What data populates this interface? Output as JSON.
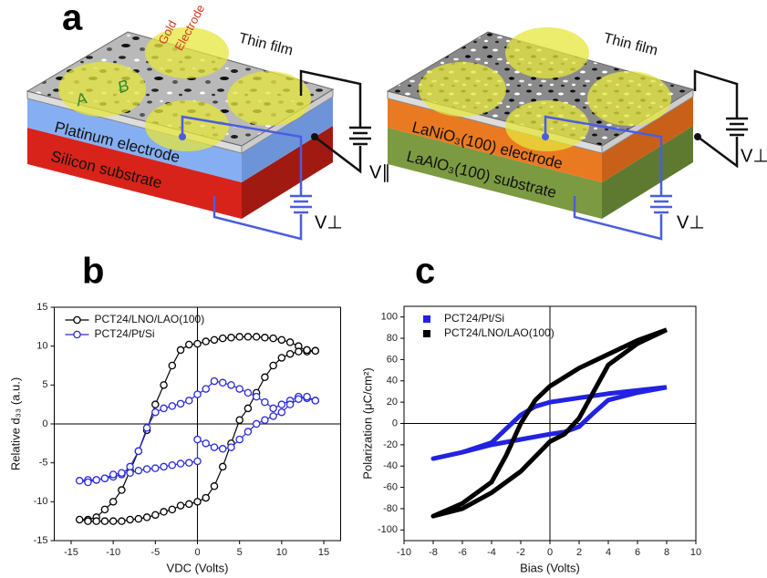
{
  "panel_labels": [
    "a",
    "b",
    "c"
  ],
  "diagram": {
    "left": {
      "film": "Thin film",
      "gold": [
        "Gold",
        "Electrode"
      ],
      "points": [
        "A",
        "B"
      ],
      "electrode": "Platinum electrode",
      "substrate": "Silicon substrate",
      "v_parallel": "V∥",
      "v_perp": "V⊥"
    },
    "right": {
      "film": "Thin film",
      "electrode": "LaNiO₃(100) electrode",
      "substrate": "LaAlO₃(100) substrate",
      "v_perp_top": "V⊥",
      "v_perp": "V⊥"
    }
  },
  "chart_data": [
    {
      "type": "line",
      "xlabel": "VDC (Volts)",
      "ylabel": "Relative d₃₃ (a.u.)",
      "xlim": [
        -17,
        17
      ],
      "xticks": [
        -15,
        -10,
        -5,
        0,
        5,
        10,
        15
      ],
      "ylim": [
        -15,
        15
      ],
      "yticks": [
        -15,
        -10,
        -5,
        0,
        5,
        10,
        15
      ],
      "zero_lines": true,
      "markers": true,
      "line_width": 1.2,
      "legend": "upper left",
      "series": [
        {
          "name": "PCT24/LNO/LAO(100)",
          "color": "#000000",
          "x": [
            14,
            13,
            12,
            11,
            10,
            9,
            8,
            7,
            6,
            5,
            4,
            3,
            2,
            1,
            0,
            -1,
            -2,
            -3,
            -4,
            -5,
            -6,
            -7,
            -8,
            -9,
            -10,
            -11,
            -12,
            -13,
            -14,
            -13,
            -12,
            -11,
            -10,
            -9,
            -8,
            -7,
            -6,
            -5,
            -4,
            -3,
            -2,
            -1,
            0,
            1,
            2,
            3,
            4,
            5,
            6,
            7,
            8,
            9,
            10,
            11,
            12,
            13,
            14
          ],
          "values": [
            9.4,
            9.3,
            10,
            10.5,
            10.8,
            11,
            11.1,
            11.2,
            11.2,
            11.2,
            11.1,
            11,
            10.8,
            10.6,
            10.3,
            10.2,
            9.5,
            7.5,
            5,
            2.5,
            -0.8,
            -3.5,
            -6,
            -8.5,
            -10,
            -11,
            -12,
            -12.3,
            -12.3,
            -12.5,
            -12.5,
            -12.5,
            -12.5,
            -12.5,
            -12.3,
            -12.2,
            -12,
            -11.7,
            -11.3,
            -11,
            -10.5,
            -10.3,
            -10,
            -9.5,
            -8,
            -5.5,
            -2.5,
            0.5,
            2,
            4,
            6,
            7.5,
            8.5,
            9,
            9.3,
            9.5,
            9.4
          ]
        },
        {
          "name": "PCT24/Pt/Si",
          "color": "#2a2ad8",
          "x": [
            14,
            13,
            12,
            11,
            10,
            9,
            8,
            7,
            6,
            5,
            4,
            3,
            2,
            1,
            0,
            -1,
            -2,
            -3,
            -4,
            -5,
            -6,
            -7,
            -8,
            -9,
            -10,
            -11,
            -12,
            -13,
            -14,
            -13,
            -12,
            -11,
            -10,
            -9,
            -8,
            -7,
            -6,
            -5,
            -4,
            -3,
            -2,
            -1,
            0,
            0,
            1,
            2,
            3,
            4,
            5,
            6,
            7,
            8,
            9,
            10,
            11,
            12,
            13,
            14
          ],
          "values": [
            3,
            3.3,
            3.5,
            3,
            2.5,
            2,
            2.8,
            3.5,
            4,
            4.5,
            5,
            5.3,
            5.5,
            4.5,
            3.8,
            3,
            2.6,
            2.3,
            2,
            1.5,
            -0.5,
            -3.5,
            -5.5,
            -6.5,
            -6.8,
            -7,
            -7.2,
            -7.2,
            -7.3,
            -7.5,
            -7.2,
            -7,
            -6.5,
            -6.3,
            -6.3,
            -6,
            -5.8,
            -5.7,
            -5.5,
            -5.3,
            -5.1,
            -5,
            -4.8,
            -2,
            -2.5,
            -3,
            -3.2,
            -3,
            -2,
            -1,
            0,
            0.5,
            1,
            1.5,
            2.5,
            3.2,
            3.5,
            3
          ]
        }
      ]
    },
    {
      "type": "line",
      "xlabel": "Bias (Volts)",
      "ylabel": "Polarization (μC/cm²)",
      "xlim": [
        -10,
        10
      ],
      "xticks": [
        -10,
        -8,
        -6,
        -4,
        -2,
        0,
        2,
        4,
        6,
        8,
        10
      ],
      "ylim": [
        -110,
        110
      ],
      "yticks": [
        -100,
        -80,
        -60,
        -40,
        -20,
        0,
        20,
        40,
        60,
        80,
        100
      ],
      "zero_lines": true,
      "markers": false,
      "line_width": 5,
      "legend": "upper left",
      "series": [
        {
          "name": "PCT24/Pt/Si",
          "color": "#2222e0",
          "x": [
            8,
            6,
            4,
            2,
            0,
            -1,
            -2,
            -3,
            -4,
            -6,
            -8,
            -6,
            -4,
            -2,
            0,
            1,
            2,
            3,
            4,
            6,
            8
          ],
          "values": [
            34,
            31,
            28,
            24,
            20,
            16,
            8,
            -5,
            -18,
            -27,
            -33,
            -27,
            -20,
            -15,
            -10,
            -8,
            -3,
            10,
            22,
            29,
            34
          ]
        },
        {
          "name": "PCT24/LNO/LAO(100)",
          "color": "#000000",
          "x": [
            8,
            6,
            4,
            2,
            0,
            -1,
            -2,
            -3,
            -4,
            -6,
            -8,
            -6,
            -4,
            -2,
            0,
            1,
            2,
            3,
            4,
            6,
            8
          ],
          "values": [
            88,
            78,
            65,
            52,
            35,
            22,
            0,
            -30,
            -55,
            -75,
            -87,
            -80,
            -65,
            -45,
            -17,
            -10,
            5,
            30,
            55,
            75,
            88
          ]
        }
      ]
    }
  ]
}
